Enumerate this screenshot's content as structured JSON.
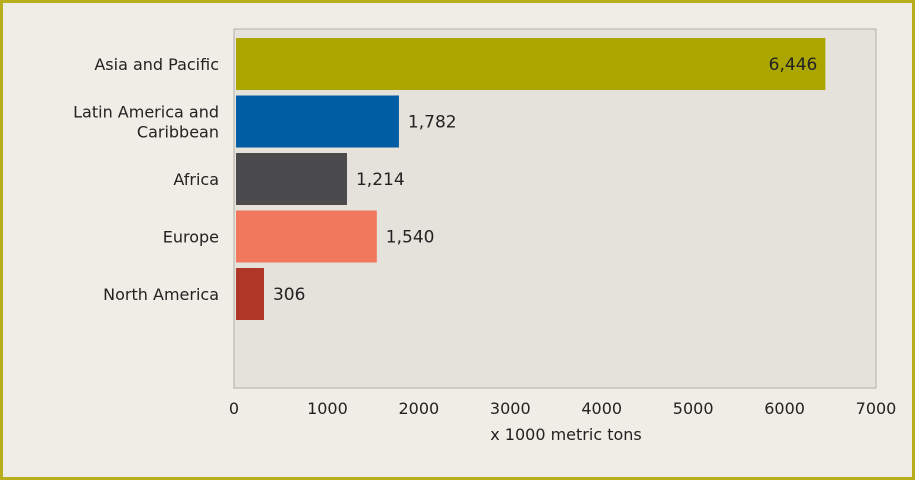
{
  "chart_data": {
    "type": "bar",
    "orientation": "horizontal",
    "categories": [
      "Asia and Pacific",
      "Latin America and Caribbean",
      "Africa",
      "Europe",
      "North America"
    ],
    "category_lines": [
      [
        "Asia and Pacific"
      ],
      [
        "Latin America and",
        "Caribbean"
      ],
      [
        "Africa"
      ],
      [
        "Europe"
      ],
      [
        "North America"
      ]
    ],
    "values": [
      6446,
      1782,
      1214,
      1540,
      306
    ],
    "value_labels": [
      "6,446",
      "1,782",
      "1,214",
      "1,540",
      "306"
    ],
    "colors": [
      "#aba500",
      "#005ca3",
      "#4b4b4d",
      "#f1775d",
      "#ae3727"
    ],
    "xlabel": "x 1000 metric tons",
    "xlim": [
      0,
      7000
    ],
    "xticks": [
      0,
      1000,
      2000,
      3000,
      4000,
      5000,
      6000,
      7000
    ],
    "grid": false,
    "plot_background": "#e4e2db",
    "frame_color": "#b8ad1c"
  }
}
